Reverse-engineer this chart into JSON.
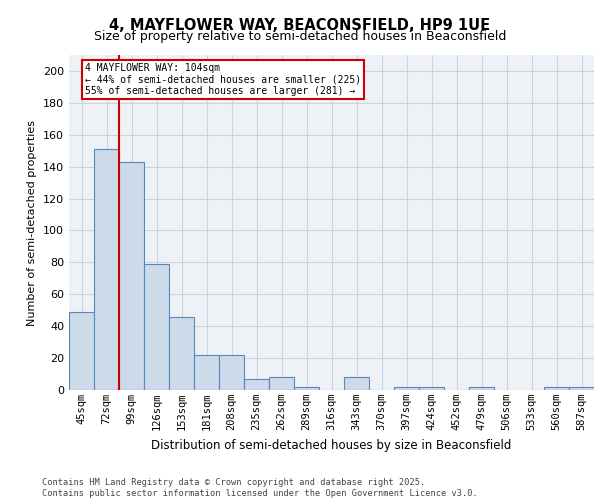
{
  "title1": "4, MAYFLOWER WAY, BEACONSFIELD, HP9 1UE",
  "title2": "Size of property relative to semi-detached houses in Beaconsfield",
  "xlabel": "Distribution of semi-detached houses by size in Beaconsfield",
  "ylabel": "Number of semi-detached properties",
  "categories": [
    "45sqm",
    "72sqm",
    "99sqm",
    "126sqm",
    "153sqm",
    "181sqm",
    "208sqm",
    "235sqm",
    "262sqm",
    "289sqm",
    "316sqm",
    "343sqm",
    "370sqm",
    "397sqm",
    "424sqm",
    "452sqm",
    "479sqm",
    "506sqm",
    "533sqm",
    "560sqm",
    "587sqm"
  ],
  "values": [
    49,
    151,
    143,
    79,
    46,
    22,
    22,
    7,
    8,
    2,
    0,
    8,
    0,
    2,
    2,
    0,
    2,
    0,
    0,
    2,
    2
  ],
  "bar_color": "#ccdaea",
  "bar_edge_color": "#5588bb",
  "grid_color": "#c8d4de",
  "annotation_box_color": "#cc0000",
  "red_line_x": 1.5,
  "footer": "Contains HM Land Registry data © Crown copyright and database right 2025.\nContains public sector information licensed under the Open Government Licence v3.0.",
  "ylim": [
    0,
    210
  ],
  "yticks": [
    0,
    20,
    40,
    60,
    80,
    100,
    120,
    140,
    160,
    180,
    200
  ],
  "background_color": "#eef2f6",
  "title1_fontsize": 10.5,
  "title2_fontsize": 9
}
